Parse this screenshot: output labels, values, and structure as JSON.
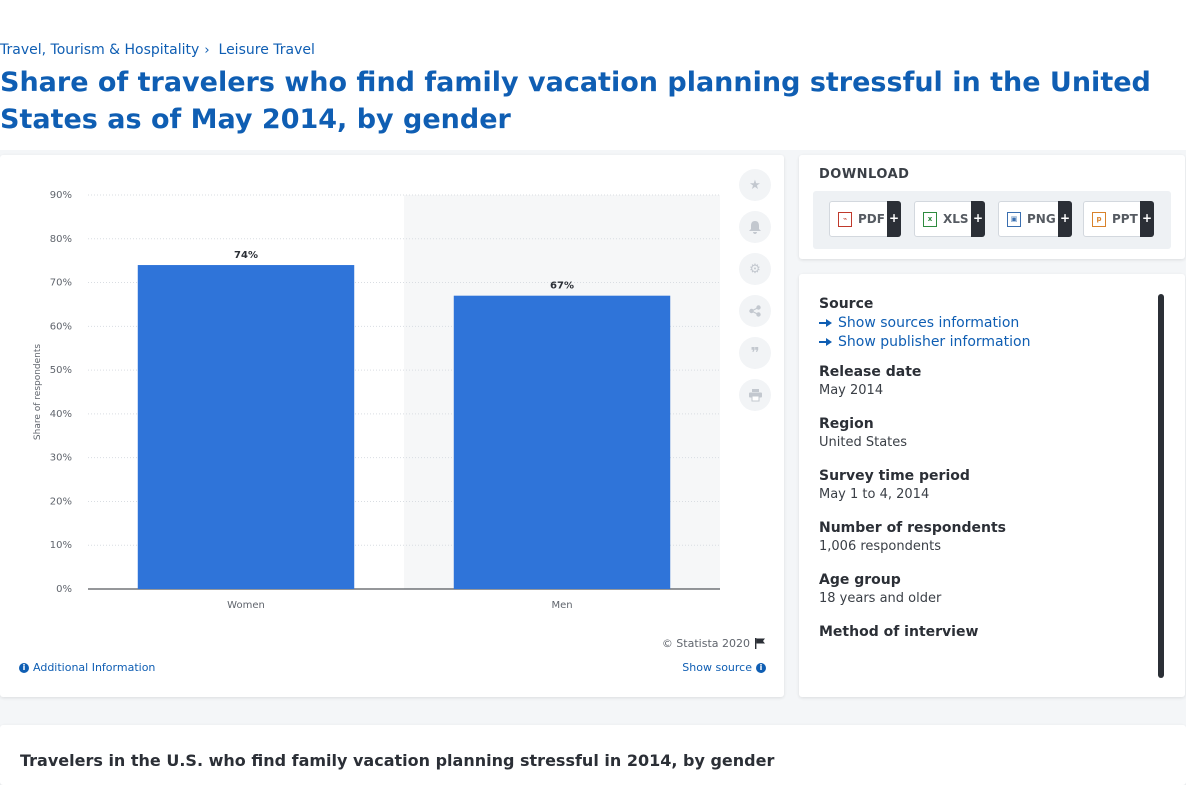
{
  "breadcrumb": {
    "items": [
      "Travel, Tourism & Hospitality",
      "Leisure Travel"
    ],
    "separator": "›"
  },
  "page_title": "Share of travelers who find family vacation planning stressful in the United States as of May 2014, by gender",
  "chart_footer": {
    "copyright": "© Statista 2020",
    "additional_info": "Additional Information",
    "show_source": "Show source"
  },
  "toolbar_icons": [
    "star-icon",
    "bell-icon",
    "gear-icon",
    "share-icon",
    "quote-icon",
    "print-icon"
  ],
  "download": {
    "title": "DOWNLOAD",
    "buttons": [
      {
        "label": "PDF",
        "plus": "+",
        "icon": "pdf-file-icon"
      },
      {
        "label": "XLS",
        "plus": "+",
        "icon": "xls-file-icon"
      },
      {
        "label": "PNG",
        "plus": "+",
        "icon": "png-file-icon"
      },
      {
        "label": "PPT",
        "plus": "+",
        "icon": "ppt-file-icon"
      }
    ]
  },
  "meta": {
    "source_label": "Source",
    "show_sources": "Show sources information",
    "show_publisher": "Show publisher information",
    "release_date_label": "Release date",
    "release_date": "May 2014",
    "region_label": "Region",
    "region": "United States",
    "survey_period_label": "Survey time period",
    "survey_period": "May 1 to 4, 2014",
    "respondents_label": "Number of respondents",
    "respondents": "1,006 respondents",
    "age_group_label": "Age group",
    "age_group": "18 years and older",
    "method_label": "Method of interview"
  },
  "bottom": {
    "title": "Travelers in the U.S. who find family vacation planning stressful in 2014, by gender"
  },
  "colors": {
    "bar": "#2f74d9",
    "brand": "#0f5eb3",
    "alt_band": "#f6f7f8"
  },
  "chart_data": {
    "type": "bar",
    "categories": [
      "Women",
      "Men"
    ],
    "values": [
      74,
      67
    ],
    "value_labels": [
      "74%",
      "67%"
    ],
    "ylabel": "Share of respondents",
    "ylim": [
      0,
      90
    ],
    "yticks": [
      0,
      10,
      20,
      30,
      40,
      50,
      60,
      70,
      80,
      90
    ],
    "ytick_labels": [
      "0%",
      "10%",
      "20%",
      "30%",
      "40%",
      "50%",
      "60%",
      "70%",
      "80%",
      "90%"
    ],
    "grid": true
  }
}
